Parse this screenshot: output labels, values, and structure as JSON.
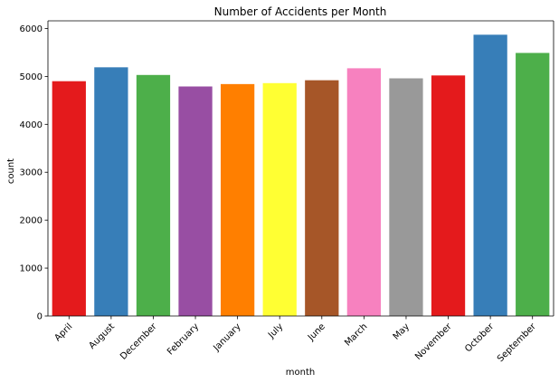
{
  "chart_data": {
    "type": "bar",
    "title": "Number of Accidents per Month",
    "xlabel": "month",
    "ylabel": "count",
    "categories": [
      "April",
      "August",
      "December",
      "February",
      "January",
      "July",
      "June",
      "March",
      "May",
      "November",
      "October",
      "September"
    ],
    "values": [
      4900,
      5190,
      5030,
      4790,
      4840,
      4860,
      4920,
      5170,
      4960,
      5020,
      5870,
      5490
    ],
    "colors": [
      "#e41a1c",
      "#377eb8",
      "#4daf4a",
      "#984ea3",
      "#ff7f00",
      "#ffff33",
      "#a65628",
      "#f781bf",
      "#999999",
      "#e41a1c",
      "#377eb8",
      "#4daf4a"
    ],
    "yticks": [
      0,
      1000,
      2000,
      3000,
      4000,
      5000,
      6000
    ],
    "ylim": [
      0,
      6160
    ],
    "grid": false,
    "legend": "none"
  }
}
